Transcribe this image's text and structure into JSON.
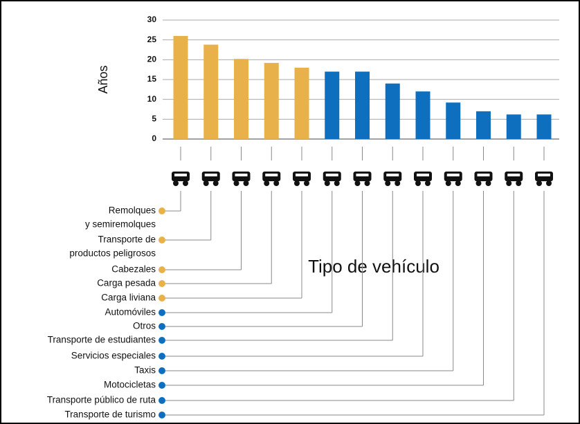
{
  "chart_data": {
    "type": "bar",
    "y_label": "Años",
    "x_label": "Tipo de vehículo",
    "categories": [
      [
        "Remolques",
        "y semiremolques"
      ],
      [
        "Transporte de",
        "productos peligrosos"
      ],
      [
        "Cabezales"
      ],
      [
        "Carga pesada"
      ],
      [
        "Carga liviana"
      ],
      [
        "Automóviles"
      ],
      [
        "Otros"
      ],
      [
        "Transporte de estudiantes"
      ],
      [
        "Servicios especiales"
      ],
      [
        "Taxis"
      ],
      [
        "Motocicletas"
      ],
      [
        "Transporte público de ruta"
      ],
      [
        "Transporte de turismo"
      ]
    ],
    "values": [
      26,
      23.8,
      20.2,
      19.2,
      18,
      17,
      17,
      14,
      12,
      9.2,
      7,
      6.2,
      6.2
    ],
    "colors": [
      "#e8b14a",
      "#e8b14a",
      "#e8b14a",
      "#e8b14a",
      "#e8b14a",
      "#0f6fbf",
      "#0f6fbf",
      "#0f6fbf",
      "#0f6fbf",
      "#0f6fbf",
      "#0f6fbf",
      "#0f6fbf",
      "#0f6fbf"
    ],
    "ylim": [
      0,
      30
    ],
    "yticks": [
      0,
      5,
      10,
      15,
      20,
      25,
      30
    ],
    "grid": true
  }
}
